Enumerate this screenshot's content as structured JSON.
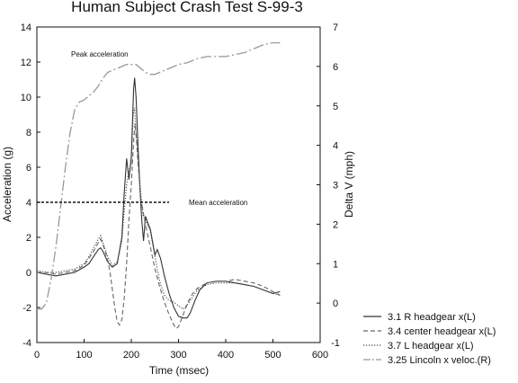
{
  "chart_data": {
    "type": "line",
    "title": "Human Subject Crash Test S-99-3",
    "xlabel": "Time (msec)",
    "ylabel": "Acceleration (g)",
    "y2label": "Delta V (mph)",
    "xlim": [
      0,
      600
    ],
    "ylim": [
      -4,
      14
    ],
    "y2lim": [
      -1,
      7
    ],
    "x_ticks": [
      "0",
      "100",
      "200",
      "300",
      "400",
      "500",
      "600"
    ],
    "y_ticks": [
      "-4",
      "-2",
      "0",
      "2",
      "4",
      "6",
      "8",
      "10",
      "12",
      "14"
    ],
    "y2_ticks": [
      "-1",
      "0",
      "1",
      "2",
      "3",
      "4",
      "5",
      "6",
      "7"
    ],
    "grid": false,
    "legend_position": "bottom-right, outside plot",
    "annotations": {
      "peak": "Peak acceleration",
      "mean": "Mean acceleration",
      "mean_value": 4
    },
    "series": [
      {
        "name": "3.1 R headgear x(L)",
        "axis": "left",
        "style": "solid",
        "color": "#333333",
        "points": [
          [
            0,
            0
          ],
          [
            20,
            -0.1
          ],
          [
            40,
            -0.2
          ],
          [
            60,
            -0.1
          ],
          [
            80,
            0
          ],
          [
            100,
            0.3
          ],
          [
            110,
            0.5
          ],
          [
            120,
            0.9
          ],
          [
            130,
            1.3
          ],
          [
            135,
            1.4
          ],
          [
            140,
            1.2
          ],
          [
            150,
            0.6
          ],
          [
            160,
            0.3
          ],
          [
            170,
            0.5
          ],
          [
            180,
            2
          ],
          [
            185,
            4.5
          ],
          [
            190,
            6.5
          ],
          [
            195,
            5.3
          ],
          [
            200,
            6.6
          ],
          [
            205,
            10.5
          ],
          [
            207,
            11.1
          ],
          [
            210,
            10
          ],
          [
            214,
            7.3
          ],
          [
            218,
            5
          ],
          [
            222,
            3
          ],
          [
            226,
            1.8
          ],
          [
            230,
            3.2
          ],
          [
            235,
            2.8
          ],
          [
            240,
            2.5
          ],
          [
            250,
            1
          ],
          [
            255,
            1.3
          ],
          [
            262,
            0.8
          ],
          [
            270,
            -0.2
          ],
          [
            280,
            -1.2
          ],
          [
            290,
            -2
          ],
          [
            300,
            -2.5
          ],
          [
            310,
            -2.6
          ],
          [
            318,
            -2.6
          ],
          [
            325,
            -2.3
          ],
          [
            335,
            -1.6
          ],
          [
            345,
            -1
          ],
          [
            360,
            -0.6
          ],
          [
            380,
            -0.5
          ],
          [
            400,
            -0.5
          ],
          [
            420,
            -0.6
          ],
          [
            440,
            -0.7
          ],
          [
            460,
            -0.8
          ],
          [
            480,
            -1
          ],
          [
            500,
            -1.2
          ],
          [
            515,
            -1.1
          ]
        ]
      },
      {
        "name": "3.4 center headgear x(L)",
        "axis": "left",
        "style": "dashed",
        "color": "#666666",
        "points": [
          [
            0,
            0
          ],
          [
            20,
            0
          ],
          [
            40,
            -0.1
          ],
          [
            60,
            0
          ],
          [
            80,
            0.1
          ],
          [
            100,
            0.4
          ],
          [
            110,
            0.8
          ],
          [
            120,
            1.2
          ],
          [
            130,
            1.7
          ],
          [
            135,
            1.9
          ],
          [
            140,
            1.6
          ],
          [
            150,
            0.7
          ],
          [
            155,
            0
          ],
          [
            160,
            -1
          ],
          [
            165,
            -2
          ],
          [
            170,
            -2.8
          ],
          [
            175,
            -3
          ],
          [
            180,
            -2.7
          ],
          [
            185,
            -1.5
          ],
          [
            190,
            0.5
          ],
          [
            195,
            3
          ],
          [
            200,
            5
          ],
          [
            205,
            7.5
          ],
          [
            208,
            8.5
          ],
          [
            211,
            7.5
          ],
          [
            215,
            6
          ],
          [
            220,
            4.2
          ],
          [
            225,
            3.5
          ],
          [
            230,
            2.7
          ],
          [
            240,
            1.5
          ],
          [
            250,
            0.2
          ],
          [
            260,
            -0.8
          ],
          [
            270,
            -1.7
          ],
          [
            280,
            -2.4
          ],
          [
            290,
            -3
          ],
          [
            295,
            -3.2
          ],
          [
            300,
            -3.1
          ],
          [
            310,
            -2.4
          ],
          [
            320,
            -1.7
          ],
          [
            330,
            -1.2
          ],
          [
            340,
            -0.9
          ],
          [
            360,
            -0.6
          ],
          [
            380,
            -0.5
          ],
          [
            400,
            -0.5
          ],
          [
            420,
            -0.4
          ],
          [
            440,
            -0.5
          ],
          [
            460,
            -0.6
          ],
          [
            480,
            -0.8
          ],
          [
            500,
            -1.1
          ],
          [
            515,
            -1.3
          ]
        ]
      },
      {
        "name": "3.7 L headgear x(L)",
        "axis": "left",
        "style": "dotted",
        "color": "#444444",
        "points": [
          [
            0,
            0.1
          ],
          [
            20,
            0
          ],
          [
            40,
            0
          ],
          [
            60,
            0.1
          ],
          [
            80,
            0.2
          ],
          [
            100,
            0.5
          ],
          [
            110,
            0.9
          ],
          [
            120,
            1.4
          ],
          [
            130,
            1.9
          ],
          [
            135,
            2.1
          ],
          [
            140,
            1.7
          ],
          [
            150,
            0.9
          ],
          [
            160,
            0.4
          ],
          [
            170,
            0.6
          ],
          [
            180,
            1.8
          ],
          [
            185,
            3.5
          ],
          [
            190,
            5
          ],
          [
            195,
            5.8
          ],
          [
            200,
            6.2
          ],
          [
            204,
            9
          ],
          [
            207,
            9.4
          ],
          [
            210,
            8
          ],
          [
            215,
            6.2
          ],
          [
            220,
            4.5
          ],
          [
            225,
            3.2
          ],
          [
            230,
            3
          ],
          [
            240,
            2.4
          ],
          [
            250,
            0.9
          ],
          [
            260,
            -0.5
          ],
          [
            270,
            -1.3
          ],
          [
            280,
            -1.6
          ],
          [
            290,
            -1.7
          ],
          [
            300,
            -1.9
          ],
          [
            310,
            -2.1
          ],
          [
            320,
            -1.8
          ],
          [
            330,
            -1.4
          ],
          [
            340,
            -1
          ],
          [
            360,
            -0.7
          ],
          [
            380,
            -0.6
          ],
          [
            400,
            -0.6
          ],
          [
            420,
            -0.6
          ],
          [
            440,
            -0.7
          ],
          [
            460,
            -0.8
          ],
          [
            480,
            -1
          ],
          [
            500,
            -1.2
          ],
          [
            515,
            -1.3
          ]
        ]
      },
      {
        "name": "3.25 Lincoln x veloc.(R)",
        "axis": "right",
        "style": "dashdot",
        "color": "#999999",
        "points": [
          [
            0,
            -0.15
          ],
          [
            10,
            -0.15
          ],
          [
            20,
            0
          ],
          [
            30,
            0.6
          ],
          [
            40,
            1.4
          ],
          [
            50,
            2.4
          ],
          [
            60,
            3.4
          ],
          [
            70,
            4.3
          ],
          [
            80,
            4.9
          ],
          [
            90,
            5.1
          ],
          [
            100,
            5.15
          ],
          [
            110,
            5.25
          ],
          [
            120,
            5.35
          ],
          [
            130,
            5.5
          ],
          [
            140,
            5.7
          ],
          [
            150,
            5.85
          ],
          [
            160,
            5.9
          ],
          [
            170,
            5.95
          ],
          [
            180,
            6
          ],
          [
            190,
            6.05
          ],
          [
            200,
            6.05
          ],
          [
            210,
            6.05
          ],
          [
            220,
            5.95
          ],
          [
            230,
            5.85
          ],
          [
            240,
            5.8
          ],
          [
            250,
            5.8
          ],
          [
            260,
            5.85
          ],
          [
            270,
            5.9
          ],
          [
            280,
            5.95
          ],
          [
            290,
            6
          ],
          [
            300,
            6.05
          ],
          [
            320,
            6.1
          ],
          [
            340,
            6.2
          ],
          [
            360,
            6.25
          ],
          [
            380,
            6.25
          ],
          [
            400,
            6.25
          ],
          [
            420,
            6.3
          ],
          [
            440,
            6.35
          ],
          [
            460,
            6.45
          ],
          [
            480,
            6.55
          ],
          [
            500,
            6.6
          ],
          [
            515,
            6.6
          ]
        ]
      }
    ]
  }
}
